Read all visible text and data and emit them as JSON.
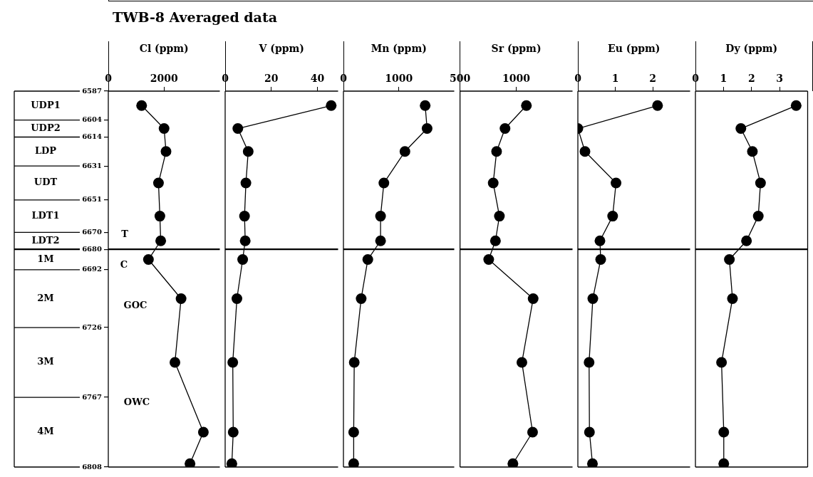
{
  "chart_data": [
    {
      "type": "line",
      "title": "TWB-8 Averaged data",
      "xlabel": "Cl (ppm)",
      "xlim": [
        0,
        4000
      ],
      "xticks": [
        0,
        2000
      ],
      "ylim": [
        6808,
        6587
      ],
      "yticks": [
        6587,
        6604,
        6614,
        6631,
        6651,
        6670,
        6680,
        6692,
        6726,
        6767,
        6808
      ],
      "marker": "circle",
      "line_style": "solid",
      "series": [
        {
          "color": "#000000",
          "x": [
            1195,
            2000,
            2070,
            1800,
            1850,
            1880,
            1440,
            2610,
            2390,
            3410,
            2930
          ],
          "values": [
            6595.5,
            6609,
            6622.5,
            6641,
            6660.5,
            6675,
            6686,
            6709,
            6746.5,
            6787.5,
            6806
          ]
        }
      ],
      "ref_lines": [
        {
          "axis": "y",
          "value": 6680
        }
      ],
      "annotations": [
        "UDP1",
        "UDP2",
        "LDP",
        "UDT",
        "LDT1",
        "LDT2",
        "1M",
        "2M",
        "3M",
        "4M",
        "T",
        "C",
        "GOC",
        "OWC"
      ]
    },
    {
      "type": "line",
      "xlabel": "V (ppm)",
      "xlim": [
        0,
        49
      ],
      "xticks": [
        0,
        20,
        40
      ],
      "ylim": [
        6808,
        6587
      ],
      "tick_labels": "x",
      "marker": "circle",
      "line_style": "solid",
      "series": [
        {
          "color": "#000000",
          "x": [
            46,
            5.5,
            10,
            9,
            8.4,
            8.7,
            7.6,
            5.1,
            3.3,
            3.5,
            2.9
          ],
          "values": [
            6595.5,
            6609,
            6622.5,
            6641,
            6660.5,
            6675,
            6686,
            6709,
            6746.5,
            6787.5,
            6806
          ]
        }
      ],
      "ref_lines": [
        {
          "axis": "y",
          "value": 6680
        }
      ]
    },
    {
      "type": "line",
      "xlabel": "Mn (ppm)",
      "xlim": [
        0,
        2000
      ],
      "xticks": [
        0,
        1000
      ],
      "ylim": [
        6808,
        6587
      ],
      "tick_labels": "x",
      "marker": "circle",
      "line_style": "solid",
      "series": [
        {
          "color": "#000000",
          "x": [
            1475,
            1510,
            1110,
            730,
            670,
            670,
            440,
            320,
            195,
            185,
            185
          ],
          "values": [
            6595.5,
            6609,
            6622.5,
            6641,
            6660.5,
            6675,
            6686,
            6709,
            6746.5,
            6787.5,
            6806
          ]
        }
      ],
      "ref_lines": [
        {
          "axis": "y",
          "value": 6680
        }
      ]
    },
    {
      "type": "line",
      "xlabel": "Sr (ppm)",
      "xlim": [
        500,
        1500
      ],
      "xticks": [
        500,
        1000
      ],
      "ylim": [
        6808,
        6587
      ],
      "tick_labels": "x",
      "marker": "circle",
      "line_style": "solid",
      "series": [
        {
          "color": "#000000",
          "x": [
            1090,
            900,
            825,
            795,
            850,
            815,
            755,
            1150,
            1050,
            1145,
            970
          ],
          "values": [
            6595.5,
            6609,
            6622.5,
            6641,
            6660.5,
            6675,
            6686,
            6709,
            6746.5,
            6787.5,
            6806
          ]
        }
      ],
      "ref_lines": [
        {
          "axis": "y",
          "value": 6680
        }
      ]
    },
    {
      "type": "line",
      "xlabel": "Eu (ppm)",
      "xlim": [
        0,
        3
      ],
      "xticks": [
        0,
        1,
        2
      ],
      "ylim": [
        6808,
        6587
      ],
      "tick_labels": "x",
      "marker": "circle",
      "line_style": "solid",
      "series": [
        {
          "color": "#000000",
          "x": [
            2.13,
            0,
            0.19,
            1.02,
            0.93,
            0.59,
            0.61,
            0.4,
            0.3,
            0.31,
            0.39
          ],
          "values": [
            6595.5,
            6609,
            6622.5,
            6641,
            6660.5,
            6675,
            6686,
            6709,
            6746.5,
            6787.5,
            6806
          ]
        }
      ],
      "ref_lines": [
        {
          "axis": "y",
          "value": 6680
        }
      ]
    },
    {
      "type": "line",
      "xlabel": "Dy (ppm)",
      "xlim": [
        0,
        4
      ],
      "xticks": [
        0,
        1,
        2,
        3
      ],
      "ylim": [
        6808,
        6587
      ],
      "tick_labels": "x",
      "marker": "circle",
      "line_style": "solid",
      "series": [
        {
          "color": "#000000",
          "x": [
            3.59,
            1.62,
            2.03,
            2.32,
            2.24,
            1.82,
            1.21,
            1.32,
            0.93,
            1.01,
            1.01
          ],
          "values": [
            6595.5,
            6609,
            6622.5,
            6641,
            6660.5,
            6675,
            6686,
            6709,
            6746.5,
            6787.5,
            6806
          ]
        }
      ],
      "ref_lines": [
        {
          "axis": "y",
          "value": 6680
        }
      ]
    }
  ]
}
